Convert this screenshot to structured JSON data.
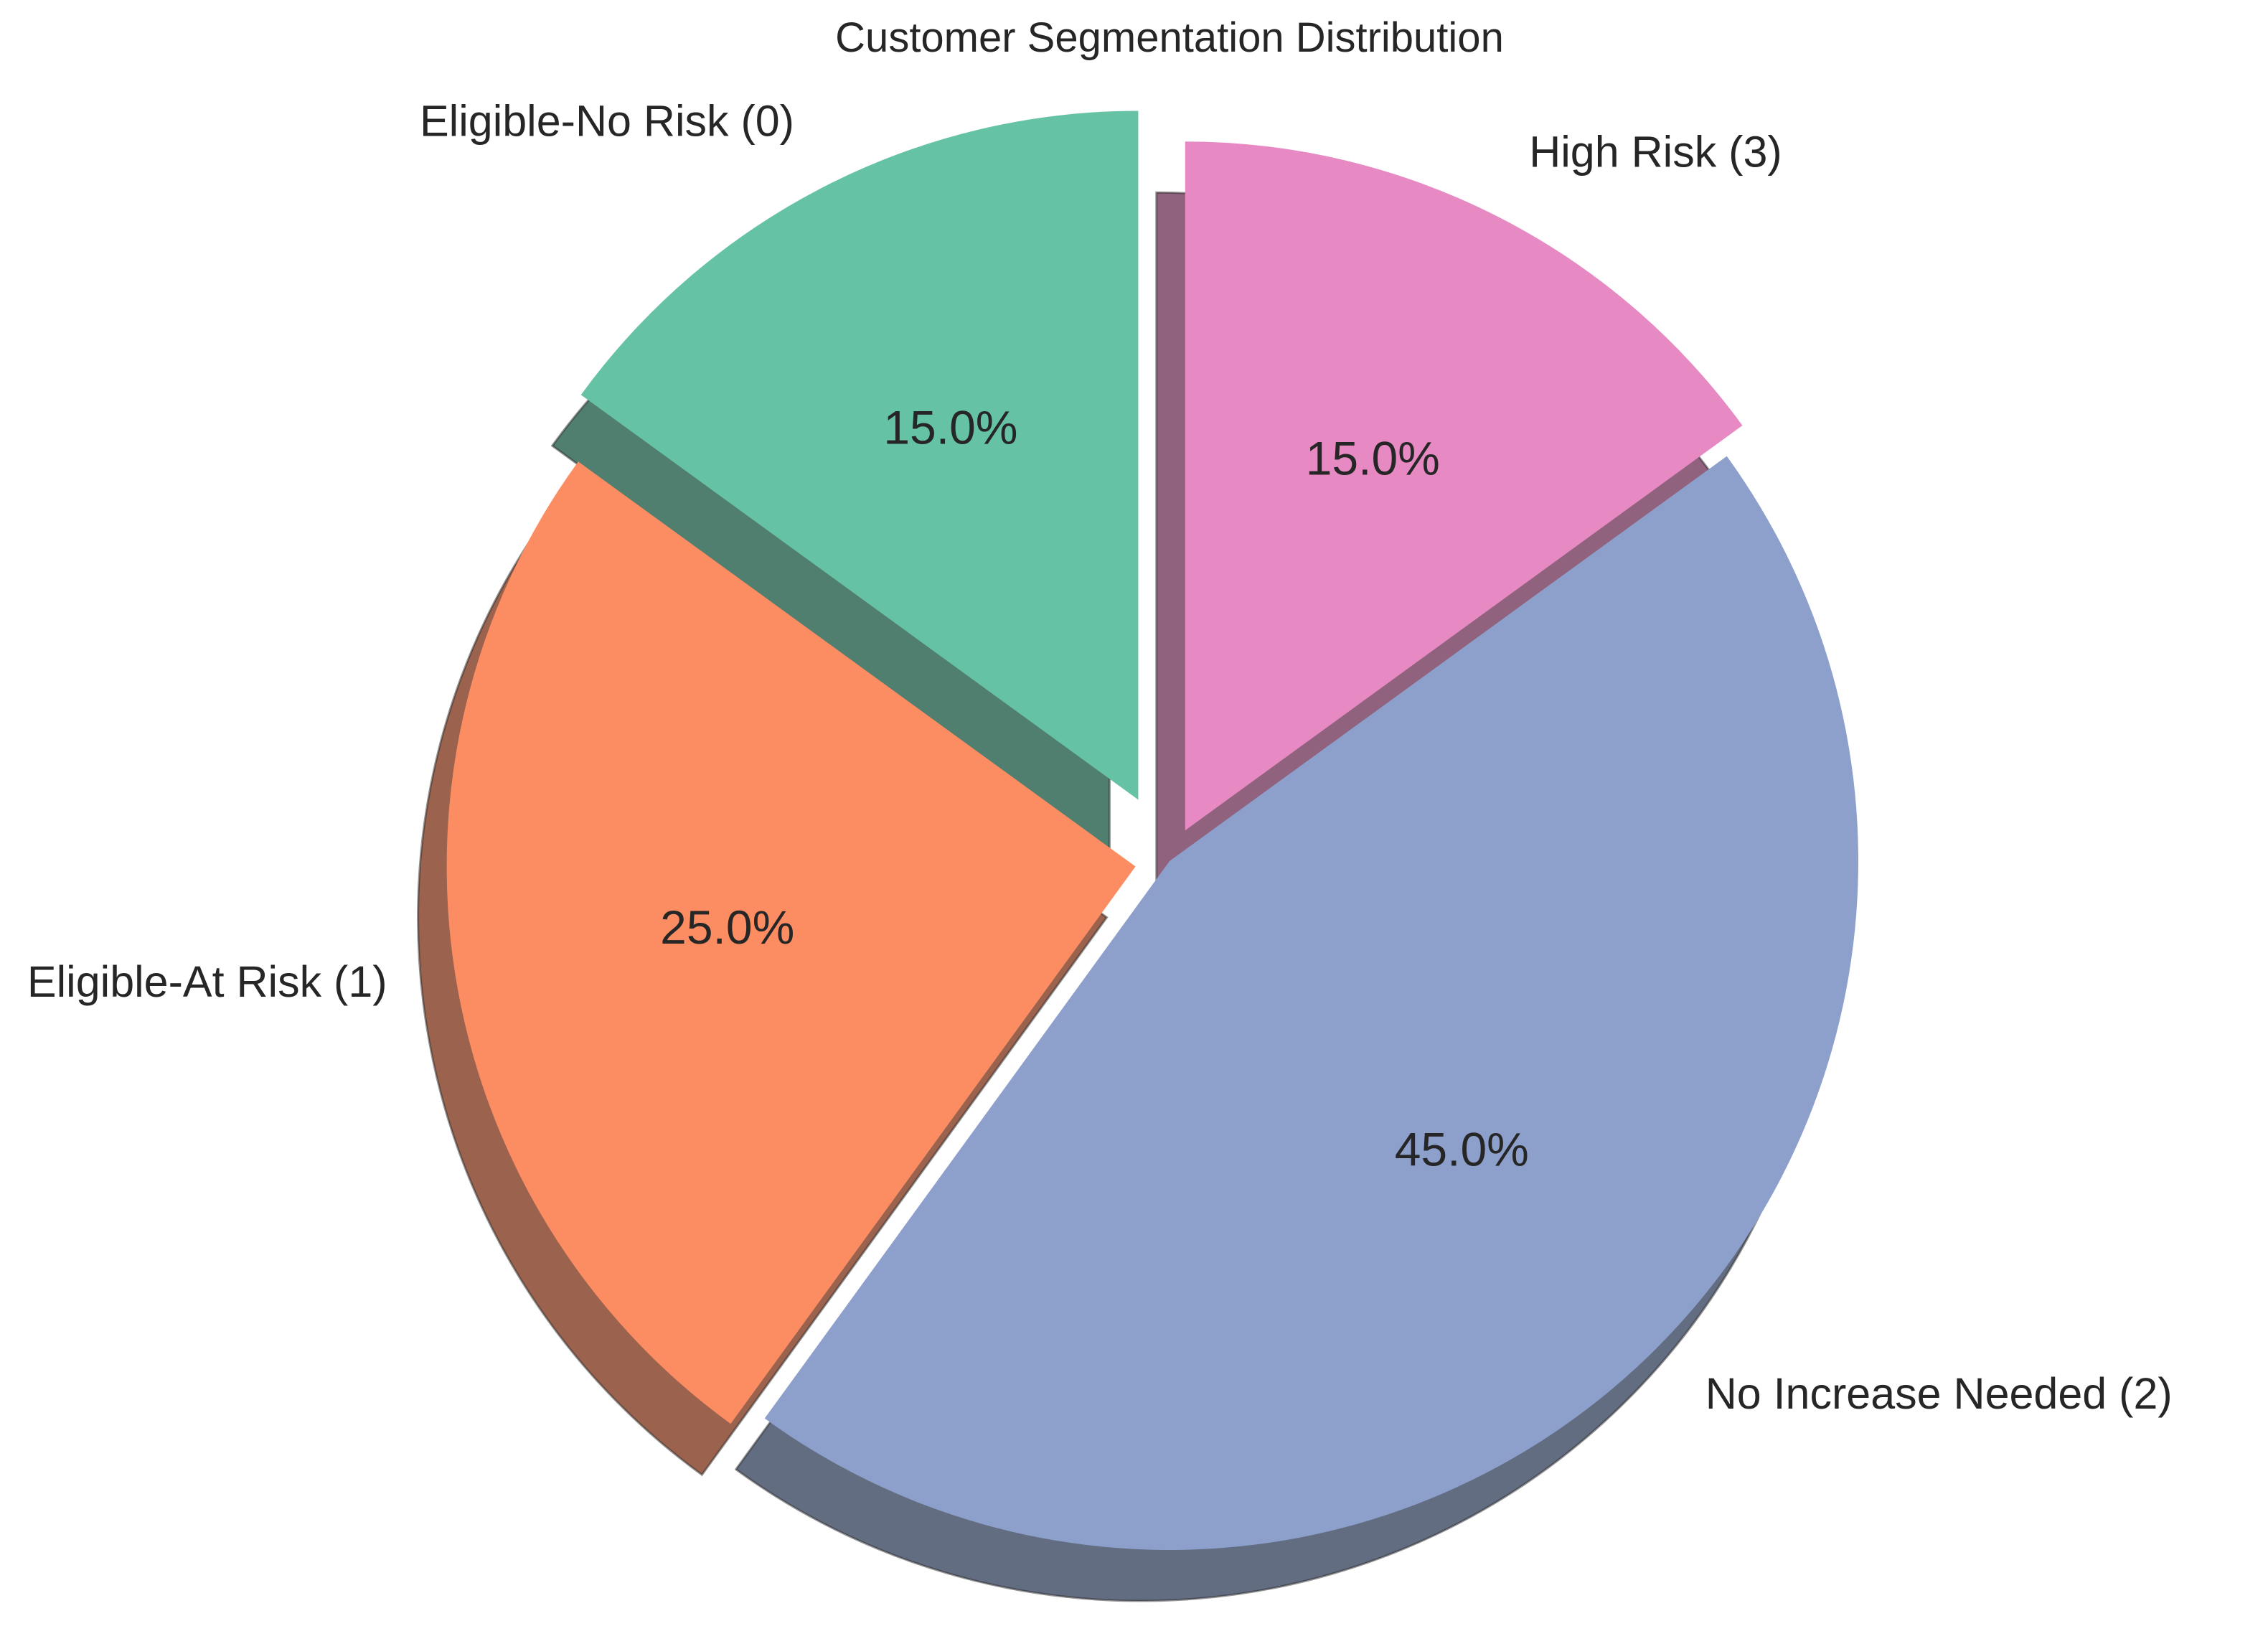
{
  "chart_data": {
    "type": "pie",
    "title": "Customer Segmentation Distribution",
    "start_angle_deg": 90,
    "direction": "counterclockwise",
    "shadow": true,
    "explode": [
      0.1,
      0.05,
      0.0,
      0.05
    ],
    "slices": [
      {
        "label": "Eligible-No Risk (0)",
        "value": 15.0,
        "pct_label": "15.0%",
        "color": "#66c2a5"
      },
      {
        "label": "Eligible-At Risk (1)",
        "value": 25.0,
        "pct_label": "25.0%",
        "color": "#fc8d62"
      },
      {
        "label": "No Increase Needed (2)",
        "value": 45.0,
        "pct_label": "45.0%",
        "color": "#8da0cb"
      },
      {
        "label": "High Risk (3)",
        "value": 15.0,
        "pct_label": "15.0%",
        "color": "#e78ac3"
      }
    ]
  }
}
